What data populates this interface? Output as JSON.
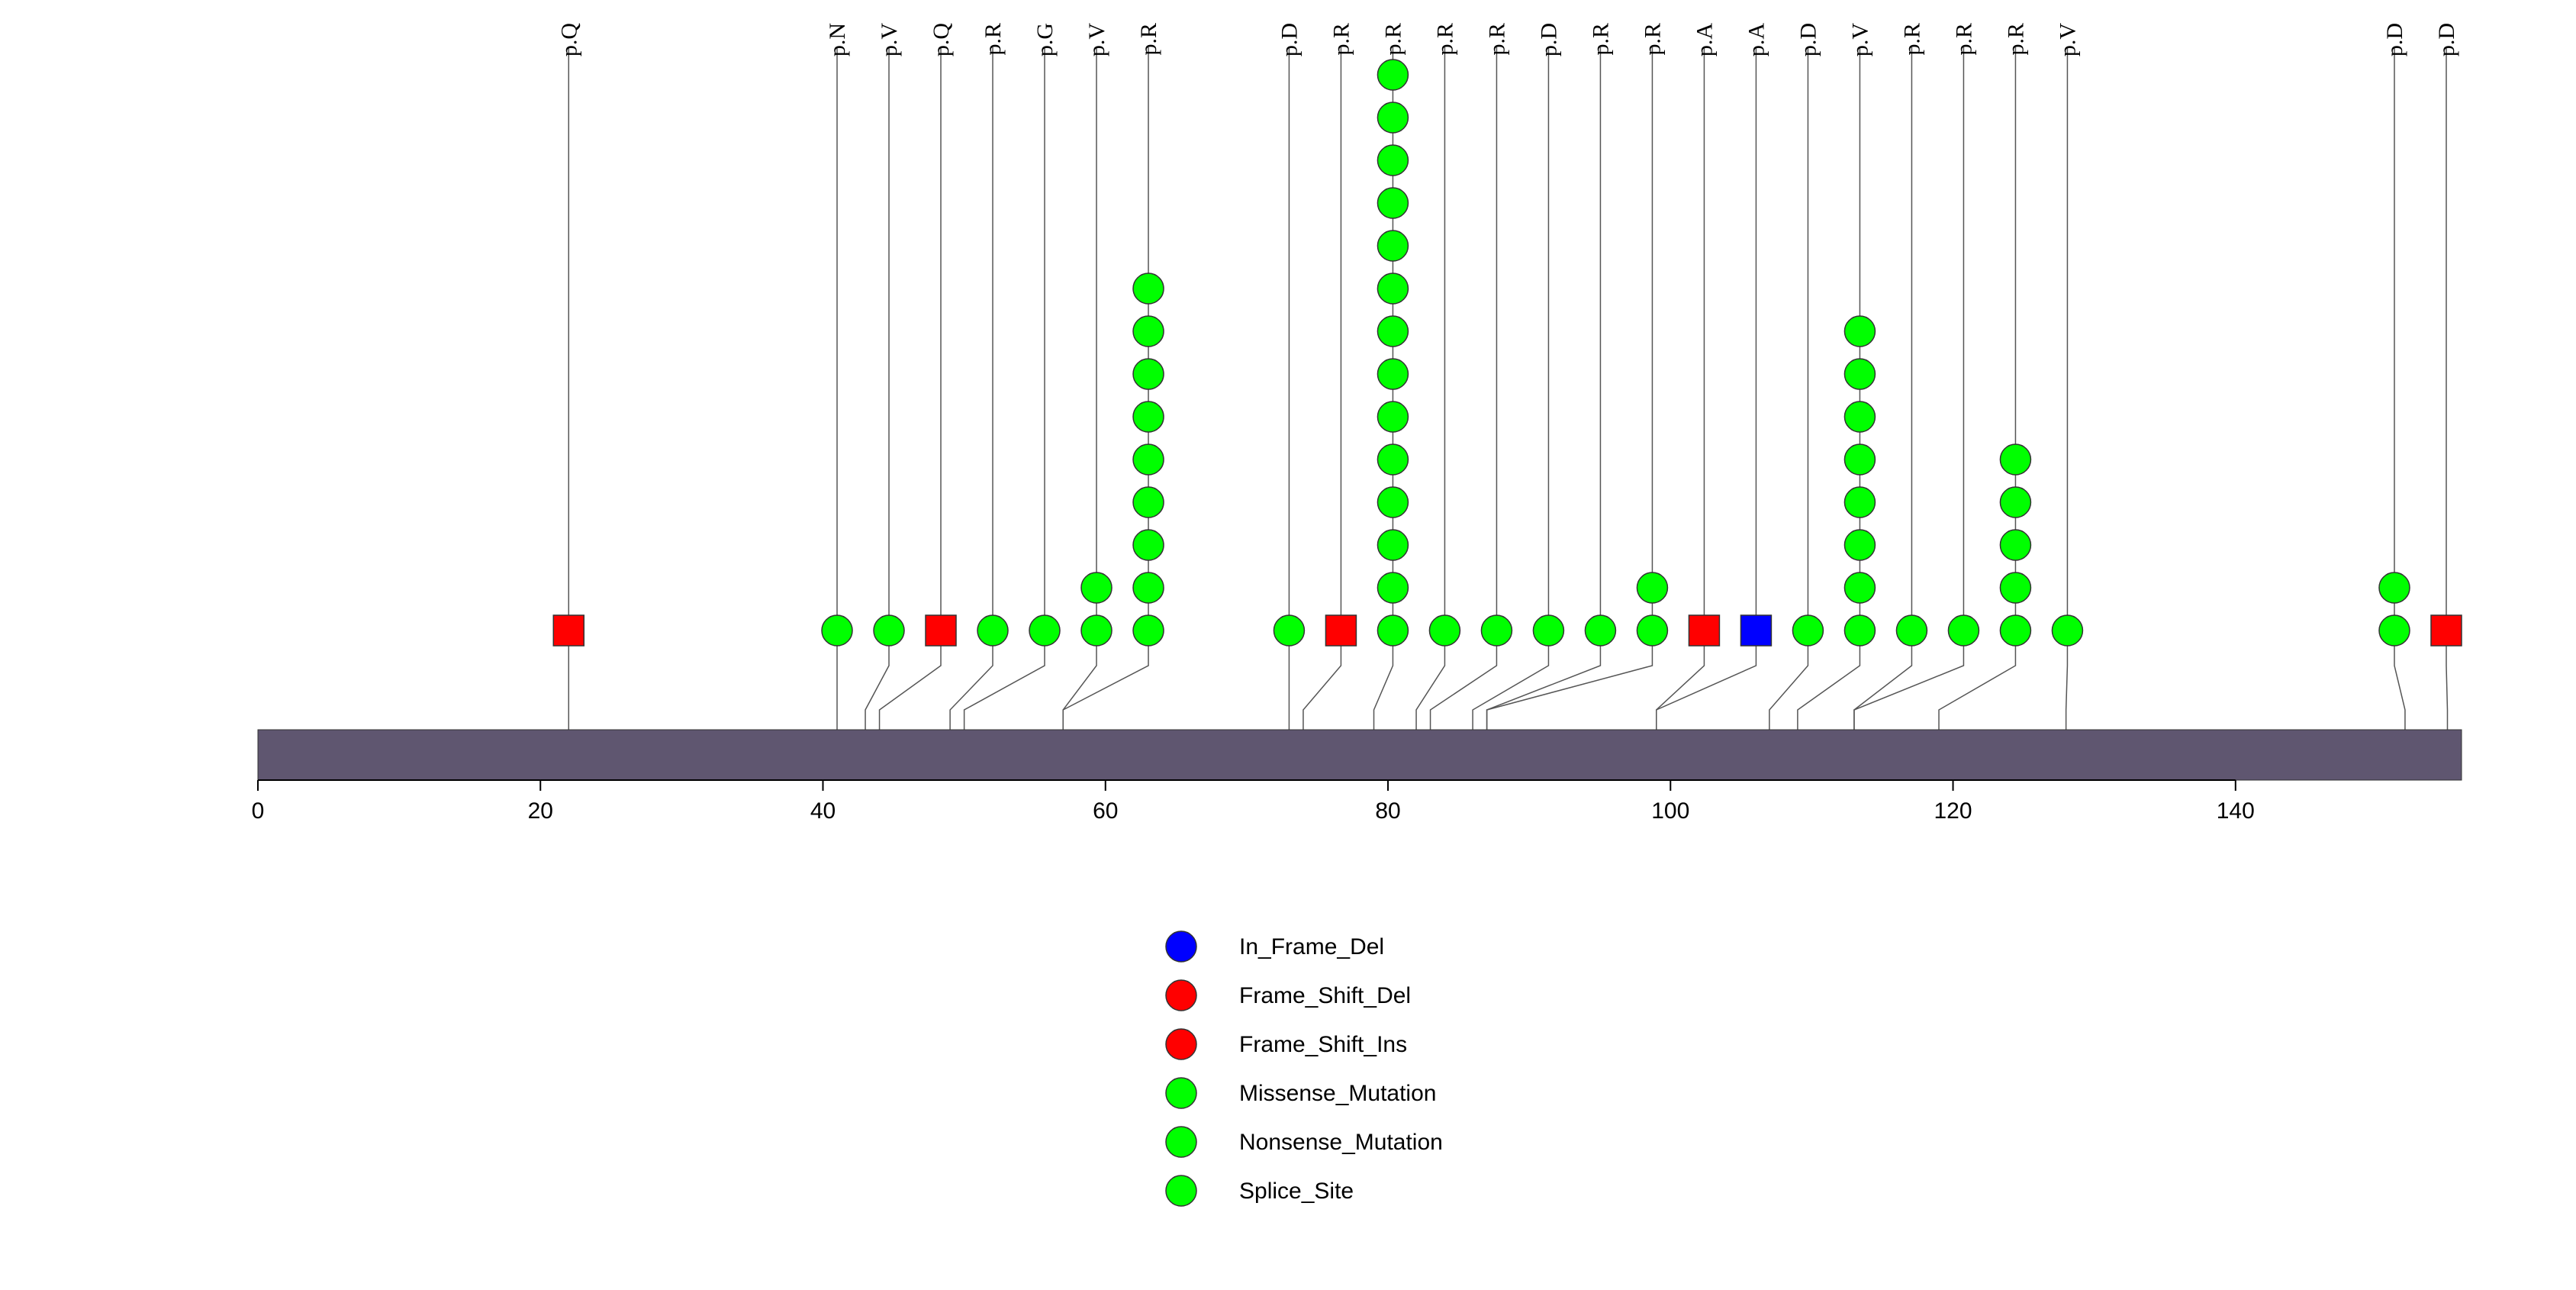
{
  "chart_data": {
    "type": "lollipop",
    "xlim": [
      0,
      156
    ],
    "x_ticks": [
      0,
      20,
      40,
      60,
      80,
      100,
      120,
      140
    ],
    "protein_length": 156,
    "colors": {
      "protein_bar": "#5f5670",
      "In_Frame_Del": "#0000ff",
      "Frame_Shift_Del": "#ff0000",
      "Frame_Shift_Ins": "#ff0000",
      "Missense_Mutation": "#00ff00",
      "Nonsense_Mutation": "#00ff00",
      "Splice_Site": "#00ff00"
    },
    "mutations": [
      {
        "pos": 22,
        "label": "p.Q",
        "count": 1,
        "class": "Frame_Shift_Del",
        "shape": "square"
      },
      {
        "pos": 41,
        "label": "p.N",
        "count": 1,
        "class": "Missense_Mutation",
        "shape": "circle"
      },
      {
        "pos": 43,
        "label": "p.V",
        "count": 1,
        "class": "Missense_Mutation",
        "shape": "circle"
      },
      {
        "pos": 44,
        "label": "p.Q",
        "count": 1,
        "class": "Frame_Shift_Del",
        "shape": "square"
      },
      {
        "pos": 49,
        "label": "p.R",
        "count": 1,
        "class": "Missense_Mutation",
        "shape": "circle"
      },
      {
        "pos": 50,
        "label": "p.G",
        "count": 1,
        "class": "Missense_Mutation",
        "shape": "circle"
      },
      {
        "pos": 57,
        "label": "p.V",
        "count": 2,
        "class": "Missense_Mutation",
        "shape": "circle"
      },
      {
        "pos": 57,
        "label": "p.R",
        "count": 9,
        "class": "Missense_Mutation",
        "shape": "circle"
      },
      {
        "pos": 73,
        "label": "p.D",
        "count": 1,
        "class": "Missense_Mutation",
        "shape": "circle"
      },
      {
        "pos": 74,
        "label": "p.R",
        "count": 1,
        "class": "Frame_Shift_Del",
        "shape": "square"
      },
      {
        "pos": 79,
        "label": "p.R",
        "count": 14,
        "class": "Missense_Mutation",
        "shape": "circle"
      },
      {
        "pos": 82,
        "label": "p.R",
        "count": 1,
        "class": "Missense_Mutation",
        "shape": "circle"
      },
      {
        "pos": 83,
        "label": "p.R",
        "count": 1,
        "class": "Missense_Mutation",
        "shape": "circle"
      },
      {
        "pos": 86,
        "label": "p.D",
        "count": 1,
        "class": "Missense_Mutation",
        "shape": "circle"
      },
      {
        "pos": 87,
        "label": "p.R",
        "count": 1,
        "class": "Missense_Mutation",
        "shape": "circle"
      },
      {
        "pos": 87,
        "label": "p.R",
        "count": 2,
        "class": "Missense_Mutation",
        "shape": "circle"
      },
      {
        "pos": 99,
        "label": "p.A",
        "count": 1,
        "class": "Frame_Shift_Del",
        "shape": "square"
      },
      {
        "pos": 99,
        "label": "p.A",
        "count": 1,
        "class": "In_Frame_Del",
        "shape": "square"
      },
      {
        "pos": 107,
        "label": "p.D",
        "count": 1,
        "class": "Missense_Mutation",
        "shape": "circle"
      },
      {
        "pos": 109,
        "label": "p.V",
        "count": 8,
        "class": "Missense_Mutation",
        "shape": "circle"
      },
      {
        "pos": 113,
        "label": "p.R",
        "count": 1,
        "class": "Missense_Mutation",
        "shape": "circle"
      },
      {
        "pos": 113,
        "label": "p.R",
        "count": 1,
        "class": "Missense_Mutation",
        "shape": "circle"
      },
      {
        "pos": 119,
        "label": "p.R",
        "count": 5,
        "class": "Missense_Mutation",
        "shape": "circle"
      },
      {
        "pos": 128,
        "label": "p.V",
        "count": 1,
        "class": "Missense_Mutation",
        "shape": "circle"
      },
      {
        "pos": 152,
        "label": "p.D",
        "count": 2,
        "class": "Missense_Mutation",
        "shape": "circle"
      },
      {
        "pos": 155,
        "label": "p.D",
        "count": 1,
        "class": "Frame_Shift_Del",
        "shape": "square"
      }
    ],
    "legend": [
      {
        "label": "In_Frame_Del",
        "color": "#0000ff"
      },
      {
        "label": "Frame_Shift_Del",
        "color": "#ff0000"
      },
      {
        "label": "Frame_Shift_Ins",
        "color": "#ff0000"
      },
      {
        "label": "Missense_Mutation",
        "color": "#00ff00"
      },
      {
        "label": "Nonsense_Mutation",
        "color": "#00ff00"
      },
      {
        "label": "Splice_Site",
        "color": "#00ff00"
      }
    ],
    "legend_placement": "bottom-center"
  }
}
